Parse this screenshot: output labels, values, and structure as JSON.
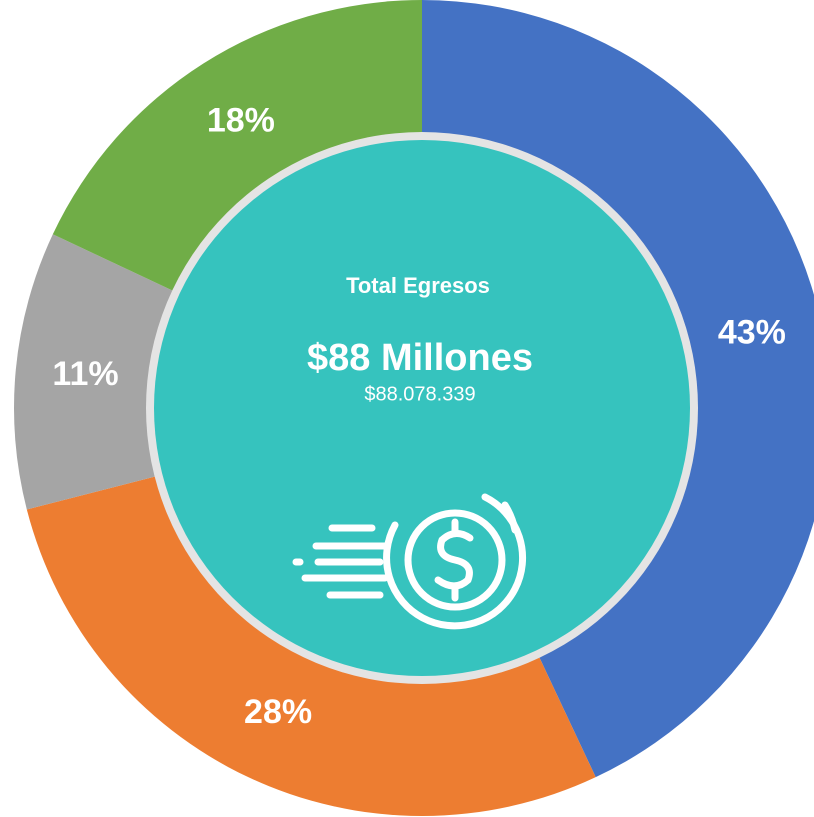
{
  "chart_data": {
    "type": "donut",
    "values": [
      43,
      28,
      11,
      18
    ],
    "value_labels": [
      "43%",
      "28%",
      "11%",
      "18%"
    ],
    "colors": [
      "#4472c4",
      "#ed7d31",
      "#a5a5a5",
      "#70ad47"
    ],
    "center_title": "Total Egresos",
    "center_value": "$88 Millones",
    "center_subvalue": "$88.078.339",
    "center_color": "#36c3be"
  }
}
